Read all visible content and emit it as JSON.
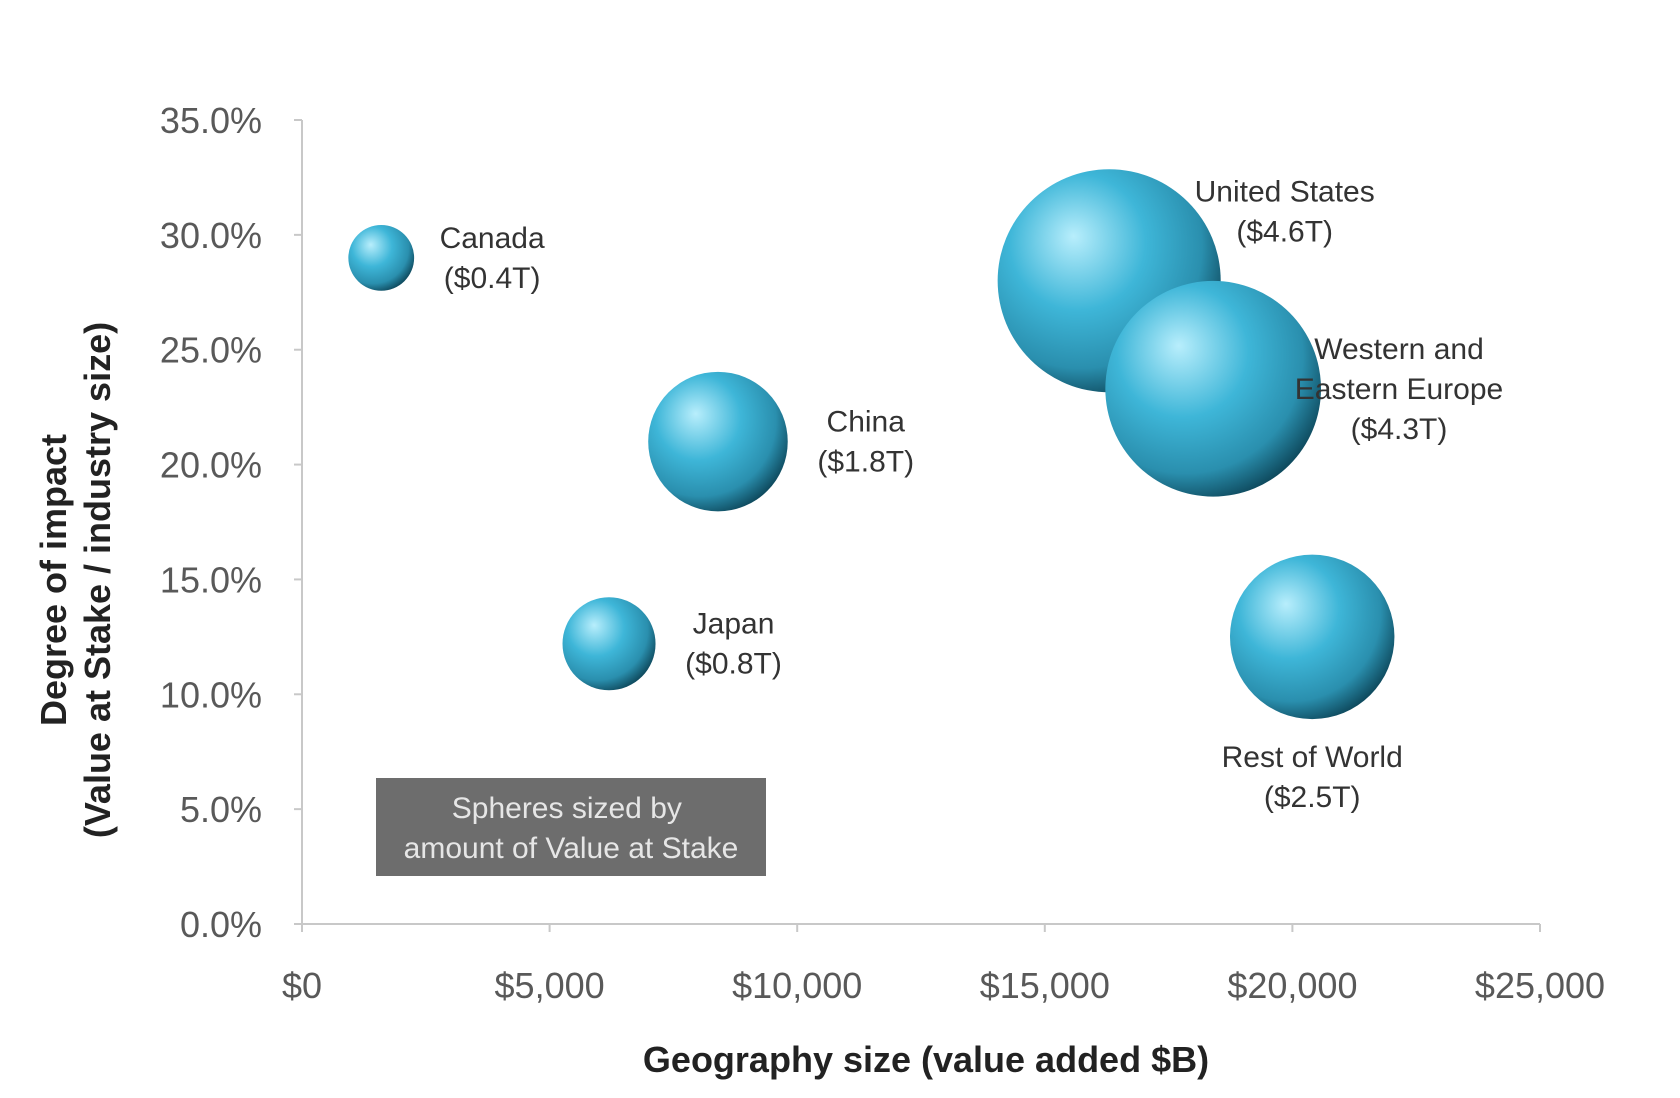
{
  "chart_data": {
    "type": "bubble",
    "xlabel": "Geography size (value added $B)",
    "ylabel_lines": [
      "Degree of impact",
      "(Value at Stake / industry size)"
    ],
    "x_ticks": [
      "$0",
      "$5,000",
      "$10,000",
      "$15,000",
      "$20,000",
      "$25,000"
    ],
    "y_ticks": [
      "0.0%",
      "5.0%",
      "10.0%",
      "15.0%",
      "20.0%",
      "25.0%",
      "30.0%",
      "35.0%"
    ],
    "xlim": [
      0,
      25000
    ],
    "ylim": [
      0,
      35
    ],
    "grid": false,
    "size_note": "Spheres sized by amount of Value at Stake",
    "size_note_lines": [
      "Spheres sized by",
      "amount of Value at Stake"
    ],
    "colors": {
      "bubble_light": "#b8eefc",
      "bubble_mid": "#3eb6d8",
      "bubble_dark": "#0f4b5f",
      "note_bg": "#6d6d6d",
      "axis": "#c8c8c8"
    },
    "points": [
      {
        "name": "Canada",
        "value_label": "($0.4T)",
        "x": 1600,
        "y": 29.0,
        "value_at_stake": 0.4,
        "label_pos": "right"
      },
      {
        "name": "Japan",
        "value_label": "($0.8T)",
        "x": 6200,
        "y": 12.2,
        "value_at_stake": 0.8,
        "label_pos": "right"
      },
      {
        "name": "China",
        "value_label": "($1.8T)",
        "x": 8400,
        "y": 21.0,
        "value_at_stake": 1.8,
        "label_pos": "right"
      },
      {
        "name": "United States",
        "value_label": "($4.6T)",
        "x": 16300,
        "y": 28.0,
        "value_at_stake": 4.6,
        "label_pos": "upper-right"
      },
      {
        "name": "Western and Eastern Europe",
        "name_lines": [
          "Western and",
          "Eastern Europe"
        ],
        "value_label": "($4.3T)",
        "x": 18400,
        "y": 23.3,
        "value_at_stake": 4.3,
        "label_pos": "right"
      },
      {
        "name": "Rest of World",
        "value_label": "($2.5T)",
        "x": 20400,
        "y": 12.5,
        "value_at_stake": 2.5,
        "label_pos": "below"
      }
    ]
  }
}
